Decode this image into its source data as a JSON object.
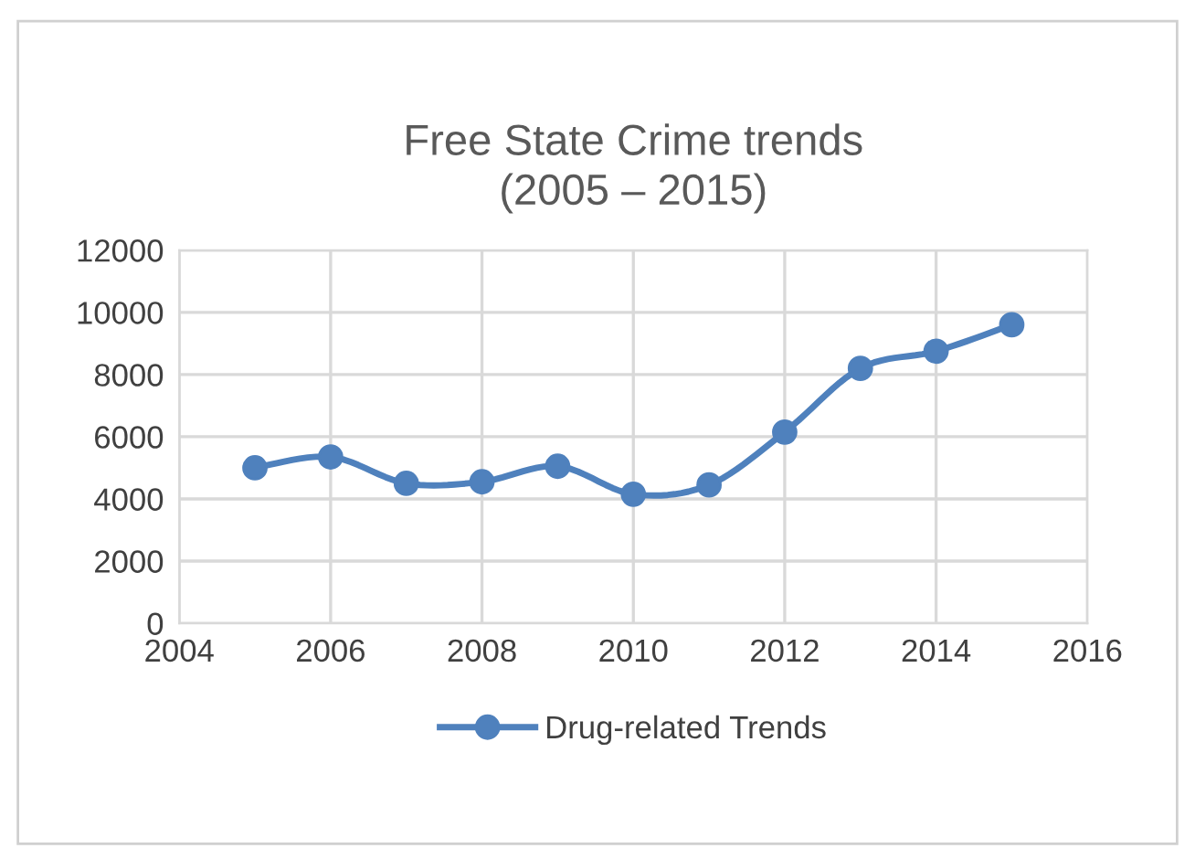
{
  "chart_data": {
    "type": "line",
    "title": "Free State Crime trends\n(2005 – 2015)",
    "x": [
      2005,
      2006,
      2007,
      2008,
      2009,
      2010,
      2011,
      2012,
      2013,
      2014,
      2015
    ],
    "series": [
      {
        "name": "Drug-related Trends",
        "color": "#4f81bd",
        "values": [
          5000,
          5350,
          4500,
          4550,
          5050,
          4150,
          4450,
          6150,
          8200,
          8750,
          9600
        ]
      }
    ],
    "xlim": [
      2004,
      2016
    ],
    "xticks": [
      2004,
      2006,
      2008,
      2010,
      2012,
      2014,
      2016
    ],
    "ylim": [
      0,
      12000
    ],
    "yticks": [
      0,
      2000,
      4000,
      6000,
      8000,
      10000,
      12000
    ],
    "grid": true,
    "legend": "bottom",
    "marker": "circle",
    "line_style": "solid"
  }
}
